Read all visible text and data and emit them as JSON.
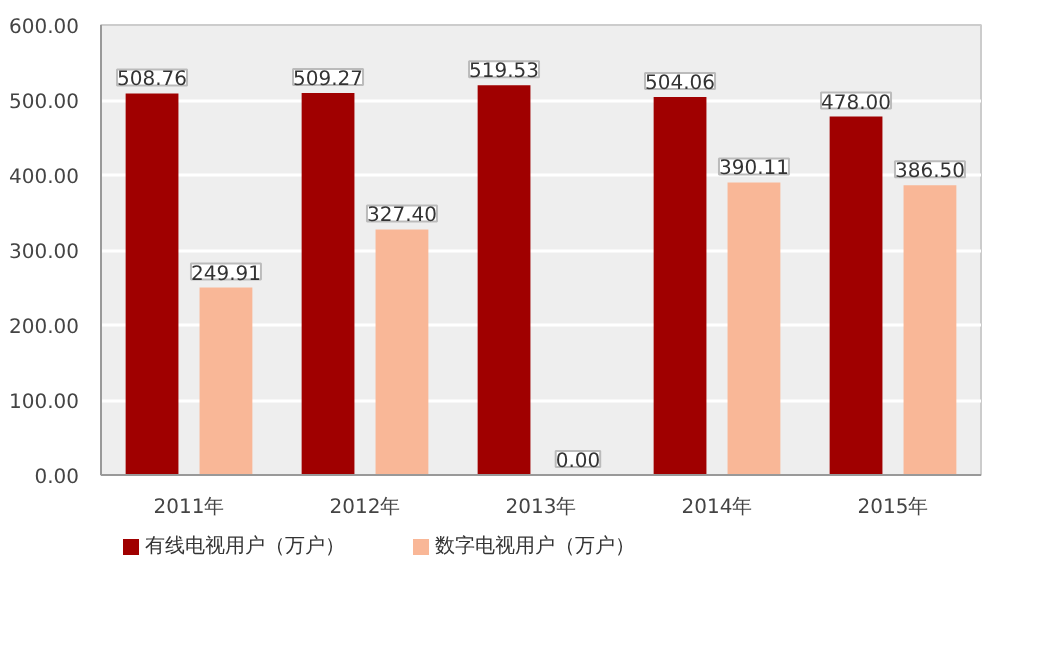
{
  "chart_data": {
    "type": "bar",
    "categories": [
      "2011年",
      "2012年",
      "2013年",
      "2014年",
      "2015年"
    ],
    "series": [
      {
        "name": "有线电视用户（万户）",
        "color": "#a00000",
        "values": [
          508.76,
          509.27,
          519.53,
          504.06,
          478.0
        ]
      },
      {
        "name": "数字电视用户（万户）",
        "color": "#f9b797",
        "values": [
          249.91,
          327.4,
          0.0,
          390.11,
          386.5
        ]
      }
    ],
    "ylim": [
      0,
      600
    ],
    "yticks": [
      {
        "value": 0,
        "label": "0.00"
      },
      {
        "value": 100,
        "label": "100.00"
      },
      {
        "value": 200,
        "label": "200.00"
      },
      {
        "value": 300,
        "label": "300.00"
      },
      {
        "value": 400,
        "label": "400.00"
      },
      {
        "value": 500,
        "label": "500.00"
      },
      {
        "value": 600,
        "label": "600.00"
      }
    ],
    "value_labels": [
      [
        "508.76",
        "509.27",
        "519.53",
        "504.06",
        "478.00"
      ],
      [
        "249.91",
        "327.40",
        "0.00",
        "390.11",
        "386.50"
      ]
    ],
    "grid": "y",
    "legend": "bottom"
  }
}
